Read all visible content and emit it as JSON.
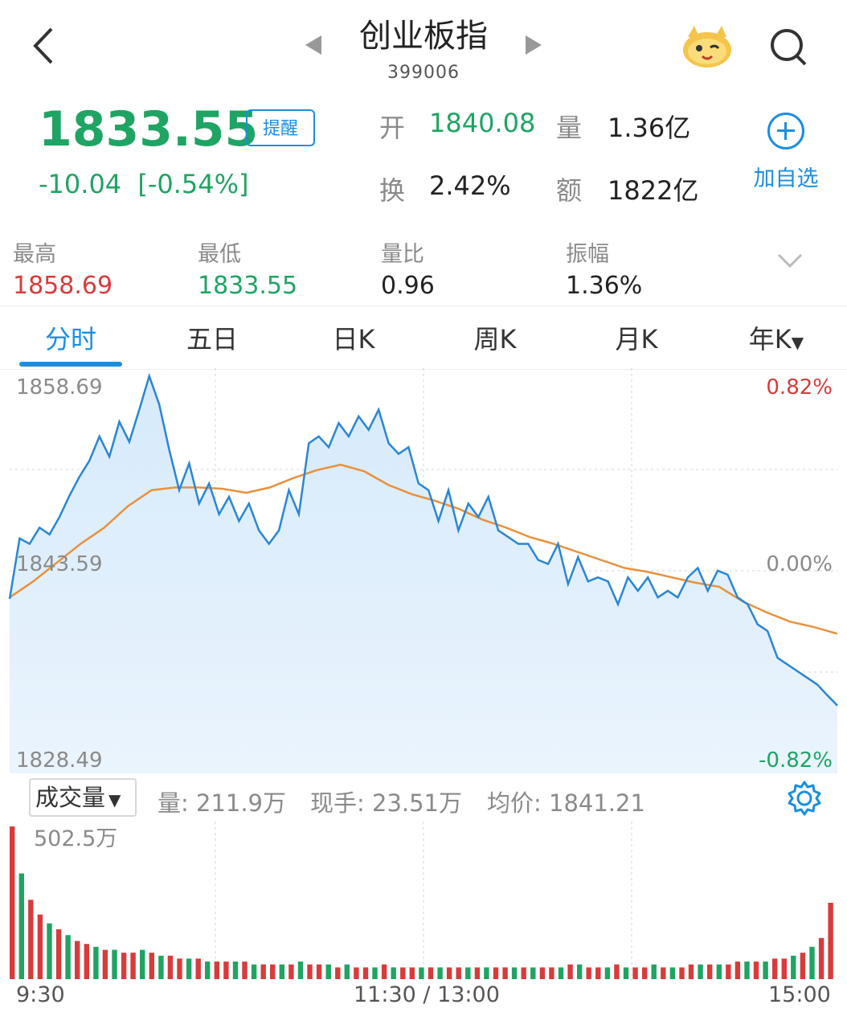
{
  "header": {
    "title": "创业板指",
    "code": "399006"
  },
  "quote": {
    "price": "1833.55",
    "change": "-10.04",
    "change_pct": "[-0.54%]",
    "alert_label": "提醒",
    "open_label": "开",
    "open_value": "1840.08",
    "volume_label": "量",
    "volume_value": "1.36亿",
    "turnover_label": "换",
    "turnover_value": "2.42%",
    "amount_label": "额",
    "amount_value": "1822亿",
    "add_fav_label": "加自选"
  },
  "stats": [
    {
      "label": "最高",
      "value": "1858.69",
      "color": "#d83b3b"
    },
    {
      "label": "最低",
      "value": "1833.55",
      "color": "#1fa463"
    },
    {
      "label": "量比",
      "value": "0.96",
      "color": "#222222"
    },
    {
      "label": "振幅",
      "value": "1.36%",
      "color": "#222222"
    }
  ],
  "tabs": [
    "分时",
    "五日",
    "日K",
    "周K",
    "月K",
    "年K"
  ],
  "active_tab": 0,
  "chart_labels": {
    "price_high": "1858.69",
    "price_mid": "1843.59",
    "price_low": "1828.49",
    "pct_high": "0.82%",
    "pct_mid": "0.00%",
    "pct_low": "-0.82%",
    "vol_max": "502.5万"
  },
  "volume_bar": {
    "select_label": "成交量",
    "vol_text": "量: 211.9万",
    "hand_text": "现手: 23.51万",
    "avg_text": "均价: 1841.21"
  },
  "time_axis": [
    "9:30",
    "11:30 / 13:00",
    "15:00"
  ],
  "colors": {
    "up": "#d83b3b",
    "down": "#1fa463",
    "accent": "#1a8fe0",
    "price_line": "#2a86d4",
    "avg_line": "#e8913c"
  },
  "chart_data": {
    "type": "line",
    "ylim": [
      1828.49,
      1858.69
    ],
    "reference": 1843.59,
    "series": [
      {
        "values": [
          1841.5,
          1846.0,
          1845.6,
          1846.8,
          1846.3,
          1847.6,
          1849.2,
          1850.6,
          1851.8,
          1853.6,
          1852.1,
          1854.7,
          1853.2,
          1855.6,
          1858.1,
          1856.0,
          1852.6,
          1849.6,
          1851.6,
          1848.6,
          1850.1,
          1847.8,
          1849.1,
          1847.3,
          1848.6,
          1846.6,
          1845.6,
          1846.6,
          1849.6,
          1847.8,
          1853.1,
          1853.6,
          1852.8,
          1854.6,
          1853.6,
          1855.1,
          1854.1,
          1855.6,
          1853.1,
          1852.3,
          1852.8,
          1850.1,
          1849.6,
          1847.3,
          1849.6,
          1846.6,
          1848.6,
          1847.6,
          1849.1,
          1846.6,
          1846.1,
          1845.6,
          1845.6,
          1844.4,
          1844.1,
          1845.6,
          1842.6,
          1844.6,
          1842.8,
          1843.1,
          1842.8,
          1841.1,
          1843.1,
          1842.1,
          1843.1,
          1841.6,
          1842.1,
          1841.6,
          1843.1,
          1843.8,
          1842.1,
          1843.6,
          1843.3,
          1841.6,
          1841.1,
          1839.6,
          1839.1,
          1837.1,
          1836.6,
          1836.1,
          1835.6,
          1835.1,
          1834.3,
          1833.55
        ],
        "color": "#2a86d4"
      },
      {
        "values": [
          1841.6,
          1842.8,
          1844.2,
          1845.6,
          1846.8,
          1848.4,
          1849.6,
          1849.8,
          1849.8,
          1849.7,
          1849.4,
          1849.8,
          1850.5,
          1851.1,
          1851.5,
          1851.0,
          1850.0,
          1849.3,
          1848.8,
          1848.2,
          1847.4,
          1846.8,
          1846.1,
          1845.6,
          1845.0,
          1844.4,
          1843.8,
          1843.5,
          1843.1,
          1842.7,
          1842.4,
          1841.3,
          1840.5,
          1839.8,
          1839.4,
          1838.9
        ],
        "color": "#e8913c"
      }
    ],
    "volume": [
      0.52,
      0.36,
      0.27,
      0.22,
      0.19,
      0.17,
      0.15,
      0.13,
      0.12,
      0.11,
      0.1,
      0.1,
      0.09,
      0.09,
      0.1,
      0.09,
      0.08,
      0.08,
      0.07,
      0.07,
      0.07,
      0.06,
      0.06,
      0.06,
      0.06,
      0.06,
      0.05,
      0.05,
      0.05,
      0.05,
      0.05,
      0.06,
      0.05,
      0.05,
      0.05,
      0.04,
      0.05,
      0.04,
      0.04,
      0.04,
      0.05,
      0.04,
      0.04,
      0.04,
      0.04,
      0.04,
      0.04,
      0.04,
      0.04,
      0.04,
      0.04,
      0.04,
      0.04,
      0.04,
      0.04,
      0.04,
      0.04,
      0.04,
      0.04,
      0.04,
      0.05,
      0.05,
      0.04,
      0.04,
      0.04,
      0.05,
      0.04,
      0.04,
      0.04,
      0.05,
      0.04,
      0.04,
      0.04,
      0.05,
      0.05,
      0.05,
      0.05,
      0.05,
      0.06,
      0.06,
      0.06,
      0.06,
      0.07,
      0.07,
      0.08,
      0.09,
      0.11,
      0.14,
      0.26
    ]
  }
}
